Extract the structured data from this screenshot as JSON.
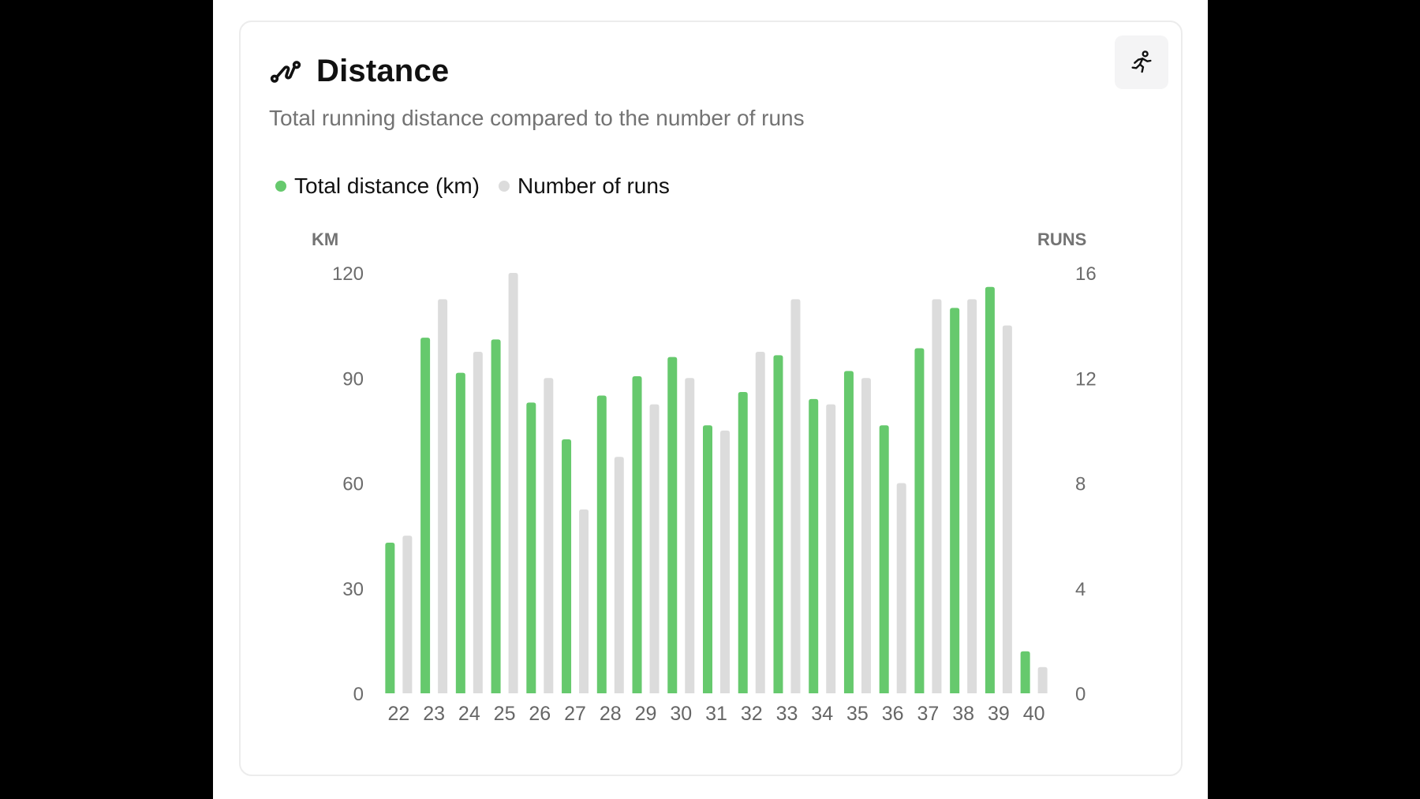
{
  "card": {
    "title": "Distance",
    "subtitle": "Total running distance compared to the number of runs",
    "title_icon": "route-icon",
    "action_icon": "runner-icon"
  },
  "legend": [
    {
      "label": "Total distance (km)",
      "color": "#66c96d"
    },
    {
      "label": "Number of runs",
      "color": "#dcdcdc"
    }
  ],
  "chart_data": {
    "type": "bar",
    "title": "Distance",
    "subtitle": "Total running distance compared to the number of runs",
    "left_axis_label": "KM",
    "right_axis_label": "RUNS",
    "left_ticks": [
      "0",
      "30",
      "60",
      "90",
      "120"
    ],
    "right_ticks": [
      "0",
      "4",
      "8",
      "12",
      "16"
    ],
    "left_ylim": [
      0,
      120
    ],
    "right_ylim": [
      0,
      16
    ],
    "grid": false,
    "legend_position": "top-left",
    "categories": [
      "22",
      "23",
      "24",
      "25",
      "26",
      "27",
      "28",
      "29",
      "30",
      "31",
      "32",
      "33",
      "34",
      "35",
      "36",
      "37",
      "38",
      "39",
      "40"
    ],
    "series": [
      {
        "name": "Total distance (km)",
        "axis": "left",
        "color": "#66c96d",
        "values": [
          43,
          101.5,
          91.5,
          101,
          83,
          72.5,
          85,
          90.5,
          96,
          76.5,
          86,
          96.5,
          84,
          92,
          76.5,
          98.5,
          110,
          116,
          12
        ]
      },
      {
        "name": "Number of runs",
        "axis": "right",
        "color": "#dcdcdc",
        "values": [
          6,
          15,
          13,
          16,
          12,
          7,
          9,
          11,
          12,
          10,
          13,
          15,
          11,
          12,
          8,
          15,
          15,
          14,
          1
        ]
      }
    ]
  }
}
